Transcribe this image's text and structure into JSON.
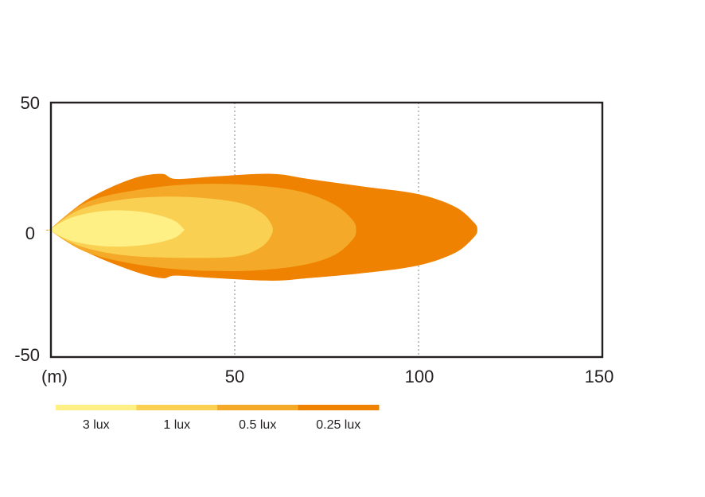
{
  "chart_data": {
    "type": "area",
    "title": "",
    "xlabel": "(m)",
    "ylabel": "",
    "xlim": [
      0,
      150
    ],
    "ylim": [
      -50,
      50
    ],
    "x_ticks": [
      "50",
      "100",
      "150"
    ],
    "y_ticks": [
      "50",
      "0",
      "-50"
    ],
    "grid": "vertical dotted at 50, 100, 150",
    "legend_position": "bottom",
    "series": [
      {
        "name": "0.25 lux",
        "color": "#ef8200",
        "outline": [
          [
            0,
            0.5
          ],
          [
            10,
            12
          ],
          [
            22,
            20
          ],
          [
            30,
            22
          ],
          [
            34,
            20
          ],
          [
            45,
            21
          ],
          [
            60,
            22
          ],
          [
            70,
            20
          ],
          [
            85,
            17
          ],
          [
            100,
            14
          ],
          [
            110,
            9
          ],
          [
            115,
            3
          ],
          [
            116,
            0
          ],
          [
            115,
            -3
          ],
          [
            110,
            -9
          ],
          [
            100,
            -14
          ],
          [
            85,
            -17
          ],
          [
            70,
            -19
          ],
          [
            60,
            -20
          ],
          [
            45,
            -19
          ],
          [
            34,
            -18
          ],
          [
            30,
            -19
          ],
          [
            22,
            -16
          ],
          [
            10,
            -9
          ],
          [
            0,
            -0.5
          ]
        ]
      },
      {
        "name": "0.5 lux",
        "color": "#f4a929",
        "outline": [
          [
            0,
            0.5
          ],
          [
            10,
            11
          ],
          [
            25,
            16
          ],
          [
            40,
            18
          ],
          [
            55,
            17.5
          ],
          [
            68,
            15
          ],
          [
            77,
            10
          ],
          [
            82,
            4
          ],
          [
            83,
            0
          ],
          [
            82,
            -4
          ],
          [
            77,
            -10
          ],
          [
            68,
            -14
          ],
          [
            55,
            -16
          ],
          [
            40,
            -16
          ],
          [
            25,
            -14
          ],
          [
            10,
            -9
          ],
          [
            0,
            -0.5
          ]
        ]
      },
      {
        "name": "1 lux",
        "color": "#fad052",
        "outline": [
          [
            0,
            0.5
          ],
          [
            8,
            8
          ],
          [
            20,
            12
          ],
          [
            35,
            13
          ],
          [
            50,
            11
          ],
          [
            57,
            7
          ],
          [
            60,
            2
          ],
          [
            60,
            -2
          ],
          [
            57,
            -7
          ],
          [
            50,
            -10.5
          ],
          [
            35,
            -11
          ],
          [
            20,
            -10
          ],
          [
            8,
            -6.5
          ],
          [
            0,
            -0.5
          ]
        ]
      },
      {
        "name": "3 lux",
        "color": "#fef085",
        "outline": [
          [
            0,
            0.5
          ],
          [
            6,
            5
          ],
          [
            15,
            7.5
          ],
          [
            25,
            7
          ],
          [
            33,
            4
          ],
          [
            36,
            0.5
          ],
          [
            36,
            -0.5
          ],
          [
            33,
            -3.5
          ],
          [
            25,
            -6
          ],
          [
            15,
            -6.5
          ],
          [
            6,
            -4.5
          ],
          [
            0,
            -0.5
          ]
        ]
      }
    ],
    "legend": [
      {
        "label": "3 lux",
        "color": "#fef085"
      },
      {
        "label": "1 lux",
        "color": "#fad052"
      },
      {
        "label": "0.5 lux",
        "color": "#f4a929"
      },
      {
        "label": "0.25 lux",
        "color": "#ef8200"
      }
    ]
  }
}
